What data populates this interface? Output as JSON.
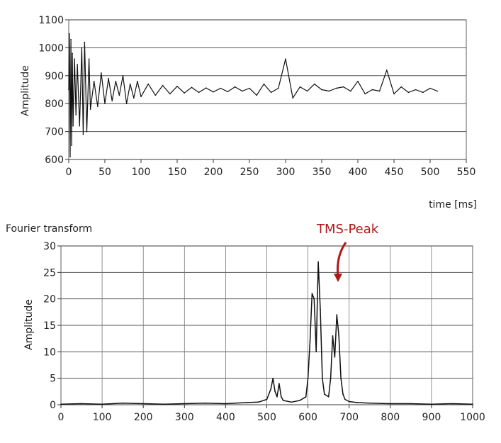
{
  "chart_data": [
    {
      "type": "line",
      "title": "",
      "xlabel": "time [ms]",
      "ylabel": "Amplitude",
      "xlim": [
        0,
        550
      ],
      "ylim": [
        600,
        1100
      ],
      "xticks": [
        0,
        50,
        100,
        150,
        200,
        250,
        300,
        350,
        400,
        450,
        500,
        550
      ],
      "yticks": [
        600,
        700,
        800,
        900,
        1000,
        1100
      ],
      "grid": "horizontal",
      "series": [
        {
          "x": [
            0,
            1,
            2,
            3,
            4,
            5,
            6,
            8,
            10,
            12,
            15,
            18,
            20,
            22,
            25,
            28,
            30,
            35,
            40,
            45,
            50,
            55,
            60,
            65,
            70,
            75,
            80,
            85,
            90,
            95,
            100,
            110,
            120,
            130,
            140,
            150,
            160,
            170,
            180,
            190,
            200,
            210,
            220,
            230,
            240,
            250,
            260,
            270,
            280,
            290,
            300,
            310,
            320,
            330,
            340,
            350,
            360,
            370,
            380,
            390,
            400,
            410,
            420,
            430,
            440,
            450,
            460,
            470,
            480,
            490,
            500,
            510
          ],
          "values": [
            850,
            1050,
            610,
            1030,
            650,
            980,
            720,
            960,
            760,
            940,
            720,
            1000,
            690,
            1020,
            700,
            960,
            780,
            880,
            790,
            910,
            800,
            890,
            810,
            880,
            830,
            900,
            800,
            870,
            820,
            880,
            825,
            870,
            830,
            865,
            835,
            862,
            838,
            858,
            840,
            856,
            842,
            855,
            843,
            860,
            845,
            855,
            830,
            870,
            840,
            855,
            960,
            820,
            860,
            845,
            870,
            850,
            845,
            855,
            860,
            845,
            880,
            835,
            850,
            845,
            920,
            835,
            860,
            840,
            850,
            840,
            855,
            845
          ]
        }
      ]
    },
    {
      "type": "line",
      "title": "Fourier transform",
      "xlabel": "",
      "ylabel": "Amplitude",
      "xlim": [
        0,
        1000
      ],
      "ylim": [
        0,
        30
      ],
      "xticks": [
        0,
        100,
        200,
        300,
        400,
        500,
        600,
        700,
        800,
        900,
        1000
      ],
      "yticks": [
        0,
        5,
        10,
        15,
        20,
        25,
        30
      ],
      "grid": "both",
      "annotation": {
        "text": "TMS-Peak",
        "x": 675,
        "y": 24,
        "color": "#b01818"
      },
      "series": [
        {
          "x": [
            0,
            50,
            100,
            150,
            200,
            250,
            300,
            350,
            400,
            450,
            480,
            500,
            510,
            515,
            520,
            525,
            530,
            535,
            540,
            560,
            580,
            595,
            600,
            605,
            610,
            615,
            620,
            625,
            630,
            635,
            640,
            650,
            655,
            660,
            665,
            670,
            675,
            680,
            685,
            690,
            700,
            720,
            750,
            800,
            850,
            900,
            950,
            1000
          ],
          "values": [
            0.1,
            0.2,
            0.1,
            0.3,
            0.2,
            0.1,
            0.2,
            0.3,
            0.2,
            0.4,
            0.5,
            1.0,
            3.0,
            5.0,
            2.5,
            1.5,
            4.0,
            1.5,
            0.8,
            0.5,
            0.8,
            1.5,
            5.0,
            12.0,
            21.0,
            20.0,
            10.0,
            27.0,
            18.0,
            5.0,
            2.0,
            1.5,
            5.0,
            13.0,
            9.0,
            17.0,
            13.0,
            5.0,
            2.0,
            1.0,
            0.6,
            0.4,
            0.3,
            0.2,
            0.2,
            0.1,
            0.2,
            0.1
          ]
        }
      ]
    }
  ]
}
